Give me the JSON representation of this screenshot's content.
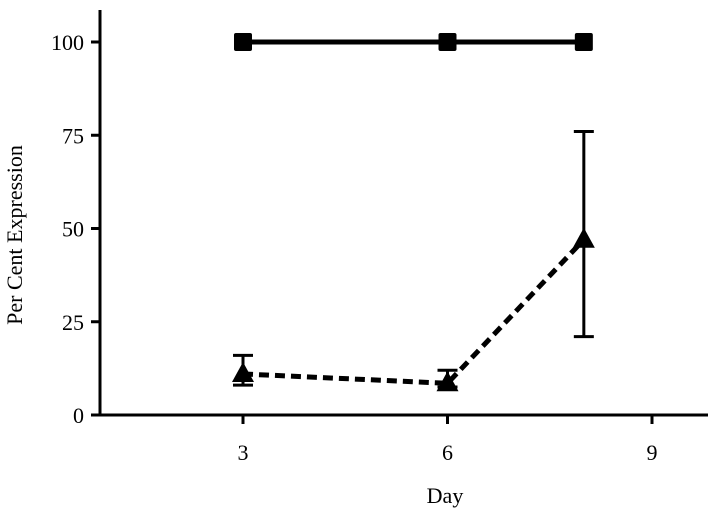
{
  "chart_data": {
    "type": "line",
    "xlabel": "Day",
    "ylabel": "Per Cent Expression",
    "xlim": [
      2,
      10
    ],
    "ylim": [
      0,
      100
    ],
    "x_ticks": [
      "3",
      "6",
      "9"
    ],
    "y_ticks": [
      "0",
      "25",
      "50",
      "75",
      "100"
    ],
    "grid": false,
    "series": [
      {
        "marker": "square",
        "line_style": "solid",
        "color": "#000000",
        "points": [
          {
            "x": 3,
            "y": 100,
            "err_low": 0,
            "err_high": 0
          },
          {
            "x": 6,
            "y": 100,
            "err_low": 0,
            "err_high": 0
          },
          {
            "x": 8,
            "y": 100,
            "err_low": 0,
            "err_high": 0
          }
        ]
      },
      {
        "marker": "triangle",
        "line_style": "dashed",
        "color": "#000000",
        "points": [
          {
            "x": 3,
            "y": 11,
            "err_low": 3,
            "err_high": 5
          },
          {
            "x": 6,
            "y": 8.5,
            "err_low": 1,
            "err_high": 3.5
          },
          {
            "x": 8,
            "y": 47,
            "err_low": 26,
            "err_high": 29
          }
        ]
      }
    ]
  }
}
